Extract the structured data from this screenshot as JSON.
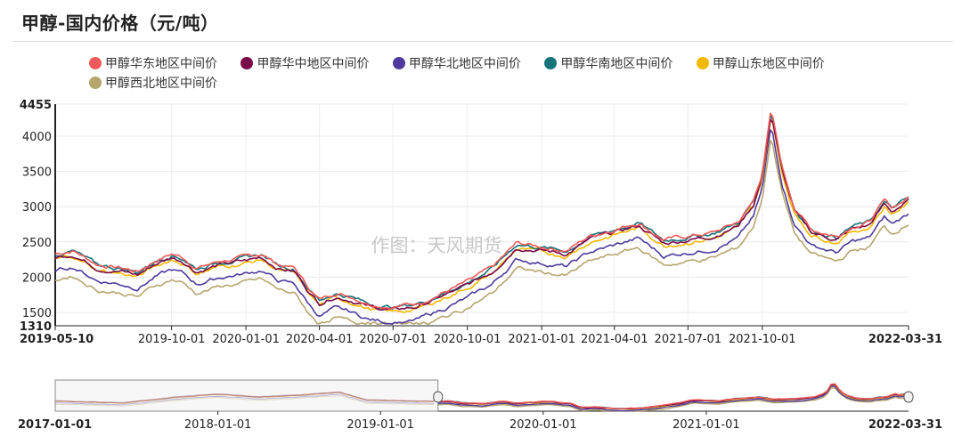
{
  "title": "甲醇-国内价格（元/吨）",
  "watermark": "作图：天风期货",
  "colors": {
    "east": "#f05a5a",
    "central": "#7a0a4a",
    "north": "#4e3a9c",
    "south": "#14747a",
    "shandong": "#f5b800",
    "northwest": "#b5a66e"
  },
  "chart_data": {
    "type": "line",
    "title": "甲醇-国内价格（元/吨）",
    "ylim": [
      1310,
      4455
    ],
    "y_ticks": [
      "4455",
      "4000",
      "3500",
      "3000",
      "2500",
      "2000",
      "1500",
      "1310"
    ],
    "x_range": [
      "2019-05-10",
      "2022-03-31"
    ],
    "x_ticks": [
      "2019-05-10",
      "2019-10-01",
      "2020-01-01",
      "2020-04-01",
      "2020-07-01",
      "2020-10-01",
      "2021-01-01",
      "2021-04-01",
      "2021-07-01",
      "2021-10-01",
      "2022-03-31"
    ],
    "navigator": {
      "x_range": [
        "2017-01-01",
        "2022-03-31"
      ],
      "x_ticks": [
        "2017-01-01",
        "2018-01-01",
        "2019-01-01",
        "2020-01-01",
        "2021-01-01",
        "2022-03-31"
      ],
      "selection": [
        "2019-05-10",
        "2022-03-31"
      ]
    },
    "series": [
      {
        "name": "甲醇华东地区中间价",
        "key": "east",
        "offset": 80
      },
      {
        "name": "甲醇华中地区中间价",
        "key": "central",
        "offset": 30
      },
      {
        "name": "甲醇华北地区中间价",
        "key": "north",
        "offset": -150
      },
      {
        "name": "甲醇华南地区中间价",
        "key": "south",
        "offset": 70
      },
      {
        "name": "甲醇山东地区中间价",
        "key": "shandong",
        "offset": 0
      },
      {
        "name": "甲醇西北地区中间价",
        "key": "northwest",
        "offset": -280
      }
    ],
    "base_points": [
      [
        "2019-05-10",
        2250
      ],
      [
        "2019-06-01",
        2300
      ],
      [
        "2019-07-01",
        2100
      ],
      [
        "2019-08-01",
        2050
      ],
      [
        "2019-08-20",
        2000
      ],
      [
        "2019-09-10",
        2150
      ],
      [
        "2019-10-01",
        2250
      ],
      [
        "2019-10-15",
        2200
      ],
      [
        "2019-11-01",
        2050
      ],
      [
        "2019-12-01",
        2150
      ],
      [
        "2020-01-01",
        2200
      ],
      [
        "2020-01-20",
        2250
      ],
      [
        "2020-02-10",
        2100
      ],
      [
        "2020-03-01",
        2050
      ],
      [
        "2020-03-20",
        1750
      ],
      [
        "2020-04-01",
        1600
      ],
      [
        "2020-04-20",
        1700
      ],
      [
        "2020-05-10",
        1650
      ],
      [
        "2020-06-01",
        1550
      ],
      [
        "2020-07-01",
        1500
      ],
      [
        "2020-08-01",
        1550
      ],
      [
        "2020-09-01",
        1700
      ],
      [
        "2020-10-01",
        1850
      ],
      [
        "2020-11-01",
        2050
      ],
      [
        "2020-12-01",
        2400
      ],
      [
        "2021-01-01",
        2350
      ],
      [
        "2021-02-01",
        2300
      ],
      [
        "2021-03-01",
        2500
      ],
      [
        "2021-04-01",
        2600
      ],
      [
        "2021-05-01",
        2700
      ],
      [
        "2021-06-01",
        2450
      ],
      [
        "2021-07-01",
        2500
      ],
      [
        "2021-08-01",
        2550
      ],
      [
        "2021-09-01",
        2700
      ],
      [
        "2021-09-20",
        3000
      ],
      [
        "2021-10-01",
        3400
      ],
      [
        "2021-10-12",
        4300
      ],
      [
        "2021-10-25",
        3500
      ],
      [
        "2021-11-10",
        2900
      ],
      [
        "2021-12-01",
        2600
      ],
      [
        "2022-01-01",
        2500
      ],
      [
        "2022-01-20",
        2650
      ],
      [
        "2022-02-10",
        2700
      ],
      [
        "2022-03-01",
        3000
      ],
      [
        "2022-03-10",
        2900
      ],
      [
        "2022-03-31",
        3050
      ]
    ]
  }
}
